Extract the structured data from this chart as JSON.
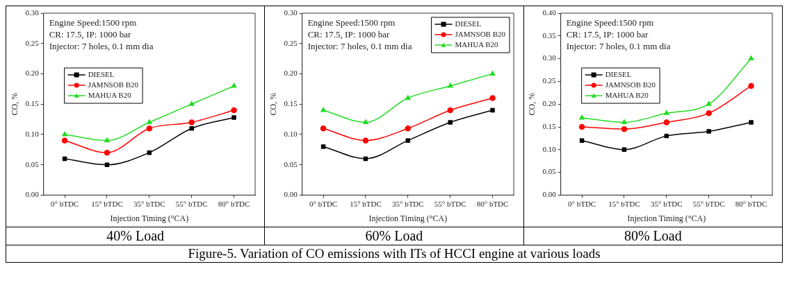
{
  "chart_data": [
    {
      "type": "line",
      "title": "40% Load",
      "xlabel": "Injection Timing (°CA)",
      "ylabel": "CO, %",
      "categories": [
        "0° bTDC",
        "15° bTDC",
        "35° bTDC",
        "55° bTDC",
        "80° bTDC"
      ],
      "ylim": [
        0,
        0.3
      ],
      "yticks": [
        {
          "value": 0,
          "label": "0.00"
        },
        {
          "value": 0.05,
          "label": "0.05"
        },
        {
          "value": 0.1,
          "label": "0.10"
        },
        {
          "value": 0.15,
          "label": "0.15"
        },
        {
          "value": 0.2,
          "label": "0.20"
        },
        {
          "value": 0.25,
          "label": "0.25"
        },
        {
          "value": 0.3,
          "label": "0.30"
        }
      ],
      "grid": false,
      "legend": "top left",
      "annotations": [
        "Engine Speed:1500 rpm",
        "CR: 17.5, IP: 1000 bar",
        "Injector: 7 holes, 0.1 mm dia",
        "Figure-5. Variation of CO emissions with ITs of HCCI engine at various loads"
      ],
      "series": [
        {
          "name": "DIESEL",
          "color": "#000000",
          "marker": "square",
          "values": [
            0.06,
            0.05,
            0.07,
            0.11,
            0.128
          ]
        },
        {
          "name": "JAMNSOB B20",
          "color": "#ff0000",
          "marker": "circle",
          "values": [
            0.09,
            0.07,
            0.11,
            0.12,
            0.14
          ]
        },
        {
          "name": "MAHUA B20",
          "color": "#22dd22",
          "marker": "triangle",
          "values": [
            0.1,
            0.09,
            0.12,
            0.15,
            0.18
          ]
        }
      ]
    },
    {
      "type": "line",
      "title": "60% Load",
      "xlabel": "Injection Timing (°CA)",
      "ylabel": "CO, %",
      "categories": [
        "0° bTDC",
        "15° bTDC",
        "35° bTDC",
        "55° bTDC",
        "80° bTDC"
      ],
      "ylim": [
        0,
        0.3
      ],
      "yticks": [
        {
          "value": 0,
          "label": "0.00"
        },
        {
          "value": 0.05,
          "label": "0.05"
        },
        {
          "value": 0.1,
          "label": "0.10"
        },
        {
          "value": 0.15,
          "label": "0.15"
        },
        {
          "value": 0.2,
          "label": "0.20"
        },
        {
          "value": 0.25,
          "label": "0.25"
        },
        {
          "value": 0.3,
          "label": "0.30"
        }
      ],
      "grid": false,
      "legend": "top right",
      "annotations": [
        "Engine Speed:1500 rpm",
        "CR: 17.5, IP: 1000 bar",
        "Injector: 7 holes, 0.1 mm dia"
      ],
      "series": [
        {
          "name": "DIESEL",
          "color": "#000000",
          "marker": "square",
          "values": [
            0.08,
            0.06,
            0.09,
            0.12,
            0.14
          ]
        },
        {
          "name": "JAMNSOB B20",
          "color": "#ff0000",
          "marker": "circle",
          "values": [
            0.11,
            0.09,
            0.11,
            0.14,
            0.16
          ]
        },
        {
          "name": "MAHUA B20",
          "color": "#22dd22",
          "marker": "triangle",
          "values": [
            0.14,
            0.12,
            0.16,
            0.18,
            0.2
          ]
        }
      ]
    },
    {
      "type": "line",
      "title": "80% Load",
      "xlabel": "Injection Timing (°CA)",
      "ylabel": "CO, %",
      "categories": [
        "0° bTDC",
        "15° bTDC",
        "35° bTDC",
        "55° bTDC",
        "80° bTDC"
      ],
      "ylim": [
        0,
        0.4
      ],
      "yticks": [
        {
          "value": 0,
          "label": "0.00"
        },
        {
          "value": 0.05,
          "label": "0.05"
        },
        {
          "value": 0.1,
          "label": "0.10"
        },
        {
          "value": 0.15,
          "label": "0.15"
        },
        {
          "value": 0.2,
          "label": "0.20"
        },
        {
          "value": 0.25,
          "label": "0.25"
        },
        {
          "value": 0.3,
          "label": "0.30"
        },
        {
          "value": 0.35,
          "label": "0.35"
        },
        {
          "value": 0.4,
          "label": "0.40"
        }
      ],
      "grid": false,
      "legend": "top left",
      "annotations": [
        "Engine Speed:1500 rpm",
        "CR: 17.5, IP: 1000 bar",
        "Injector: 7 holes, 0.1 mm dia"
      ],
      "series": [
        {
          "name": "DIESEL",
          "color": "#000000",
          "marker": "square",
          "values": [
            0.12,
            0.1,
            0.13,
            0.14,
            0.16
          ]
        },
        {
          "name": "JAMNSOB B20",
          "color": "#ff0000",
          "marker": "circle",
          "values": [
            0.15,
            0.145,
            0.16,
            0.18,
            0.24
          ]
        },
        {
          "name": "MAHUA B20",
          "color": "#22dd22",
          "marker": "triangle",
          "values": [
            0.17,
            0.16,
            0.18,
            0.2,
            0.3
          ]
        }
      ]
    }
  ]
}
